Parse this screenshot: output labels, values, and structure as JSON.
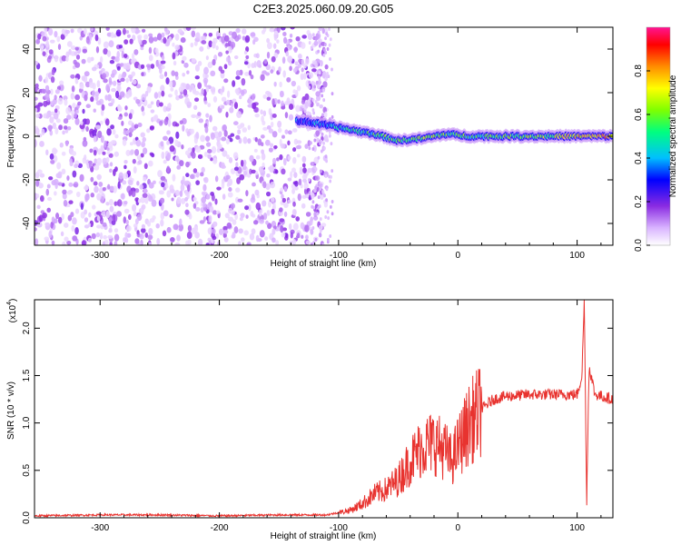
{
  "chart_data": [
    {
      "type": "heatmap",
      "title": "C2E3.2025.060.09.20.G05",
      "xlabel": "Height of straight line (km)",
      "ylabel": "Frequency (Hz)",
      "xlim": [
        -355,
        130
      ],
      "ylim": [
        -50,
        50
      ],
      "x_ticks": [
        "-300",
        "-200",
        "-100",
        "0",
        "100"
      ],
      "y_ticks": [
        "-40",
        "-20",
        "0",
        "20",
        "40"
      ],
      "colorbar": {
        "label": "Normalized spectral amplitude",
        "range": [
          0,
          1
        ],
        "ticks": [
          "0.0",
          "0.2",
          "0.4",
          "0.6",
          "0.8"
        ],
        "colors": [
          "#ffffff",
          "#d9b3ff",
          "#8a2be2",
          "#0000ff",
          "#00bfff",
          "#00ff7f",
          "#7fff00",
          "#ffff00",
          "#ff8c00",
          "#ff0000",
          "#ff1493"
        ]
      },
      "signal_track": {
        "description_x": [
          -130,
          -110,
          -90,
          -70,
          -50,
          -30,
          -10,
          10,
          40,
          70,
          100,
          128
        ],
        "frequency_hz": [
          7,
          5,
          3,
          1,
          -2,
          -1,
          1,
          0,
          0,
          0,
          0,
          0
        ],
        "amplitude": [
          0.3,
          0.4,
          0.45,
          0.5,
          0.55,
          0.6,
          0.55,
          0.5,
          0.55,
          0.6,
          0.7,
          0.8
        ]
      }
    },
    {
      "type": "line",
      "xlabel": "Height of straight line (km)",
      "ylabel": "SNR (10 * v/v)",
      "y_multiplier": "(x10",
      "y_multiplier_exp": "4",
      "xlim": [
        -355,
        130
      ],
      "ylim": [
        0,
        2.3
      ],
      "x_ticks": [
        "-300",
        "-200",
        "-100",
        "0",
        "100"
      ],
      "y_ticks": [
        "0.0",
        "0.5",
        "1.0",
        "1.5",
        "2.0"
      ],
      "series": [
        {
          "color": "#e8332f",
          "x": [
            -355,
            -300,
            -250,
            -200,
            -150,
            -110,
            -90,
            -80,
            -70,
            -60,
            -50,
            -40,
            -30,
            -20,
            -10,
            -5,
            0,
            10,
            20,
            30,
            40,
            60,
            80,
            100,
            104,
            106,
            108,
            110,
            115,
            130
          ],
          "y": [
            0.02,
            0.03,
            0.03,
            0.02,
            0.03,
            0.03,
            0.08,
            0.15,
            0.25,
            0.3,
            0.4,
            0.6,
            0.75,
            0.8,
            0.7,
            0.6,
            0.75,
            1.0,
            1.15,
            1.25,
            1.28,
            1.3,
            1.3,
            1.3,
            1.5,
            2.3,
            0.15,
            1.6,
            1.3,
            1.25
          ]
        }
      ]
    }
  ]
}
